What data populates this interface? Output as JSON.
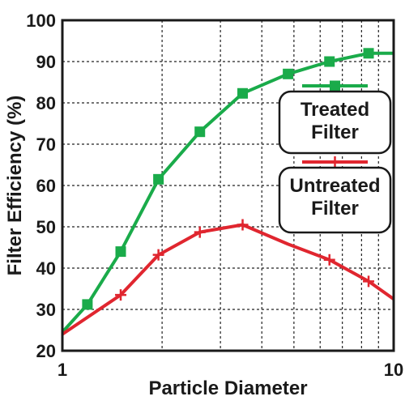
{
  "chart_data": {
    "type": "line",
    "xscale": "log",
    "xlim": [
      1,
      10
    ],
    "ylim": [
      20,
      100
    ],
    "xlabel": "Particle Diameter",
    "ylabel": "Filter Efficiency (%)",
    "xticks": [
      "1",
      "10"
    ],
    "yticks": [
      "20",
      "30",
      "40",
      "50",
      "60",
      "70",
      "80",
      "90",
      "100"
    ],
    "grid": true,
    "legend_position": "right",
    "series": [
      {
        "name": "Treated Filter",
        "legend_lines": [
          "Treated",
          "Filter"
        ],
        "color": "#1aab4a",
        "marker": "square",
        "x": [
          1.0,
          1.19,
          1.5,
          1.95,
          2.6,
          3.5,
          4.8,
          6.4,
          8.4,
          10.0
        ],
        "y": [
          24.5,
          31.2,
          44.0,
          61.5,
          73.0,
          82.3,
          87.0,
          90.0,
          92.0,
          92.0
        ],
        "marker_mask": [
          false,
          true,
          true,
          true,
          true,
          true,
          true,
          true,
          true,
          false
        ]
      },
      {
        "name": "Untreated Filter",
        "legend_lines": [
          "Untreated",
          "Filter"
        ],
        "color": "#e0262f",
        "marker": "plus",
        "x": [
          1.0,
          1.5,
          1.95,
          2.6,
          3.5,
          4.8,
          6.4,
          8.4,
          10.0
        ],
        "y": [
          24.0,
          33.5,
          43.2,
          48.7,
          50.5,
          45.8,
          42.0,
          36.8,
          32.5
        ],
        "marker_mask": [
          false,
          true,
          true,
          true,
          true,
          false,
          true,
          true,
          false
        ]
      }
    ]
  }
}
